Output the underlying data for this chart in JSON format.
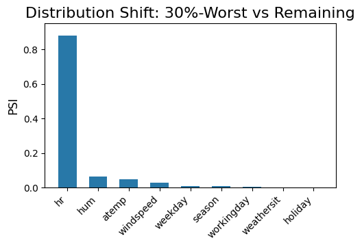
{
  "title": "Distribution Shift: 30%-Worst vs Remaining",
  "categories": [
    "hr",
    "hum",
    "atemp",
    "windspeed",
    "weekday",
    "season",
    "workingday",
    "weathersit",
    "holiday"
  ],
  "values": [
    0.878,
    0.065,
    0.048,
    0.028,
    0.01,
    0.007,
    0.005,
    0.002,
    0.001
  ],
  "bar_color": "#2878a8",
  "ylabel": "PSI",
  "ylim": [
    0,
    0.95
  ],
  "title_fontsize": 16,
  "label_fontsize": 12,
  "tick_fontsize": 10
}
